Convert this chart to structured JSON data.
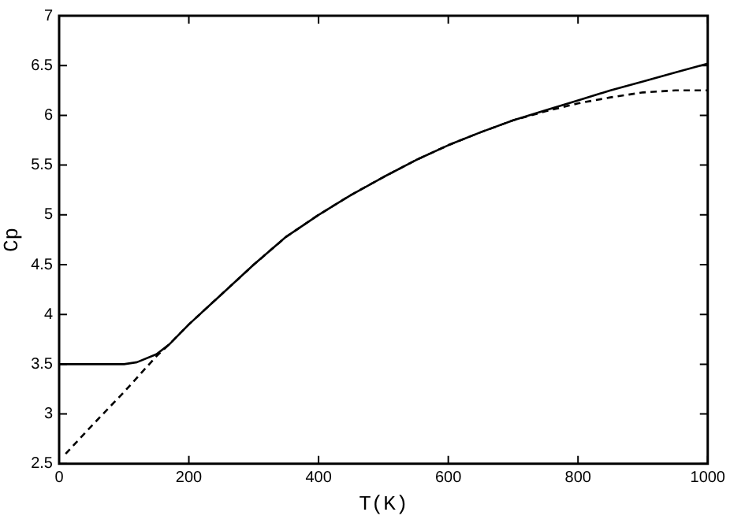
{
  "chart_data": {
    "type": "line",
    "xlabel": "T(K)",
    "ylabel": "Cp",
    "xlim": [
      0,
      1000
    ],
    "xticks": [
      0,
      200,
      400,
      600,
      800,
      1000
    ],
    "ylim": [
      2.5,
      7
    ],
    "yticks": [
      2.5,
      3,
      3.5,
      4,
      4.5,
      5,
      5.5,
      6,
      6.5,
      7
    ],
    "grid": false,
    "legend": false,
    "marker": "none",
    "series": [
      {
        "color": "#000000",
        "line_style": "solid",
        "x": [
          0,
          50,
          100,
          120,
          150,
          170,
          200,
          250,
          300,
          350,
          400,
          450,
          500,
          550,
          600,
          650,
          700,
          750,
          800,
          850,
          900,
          950,
          1000
        ],
        "values": [
          3.5,
          3.5,
          3.5,
          3.52,
          3.6,
          3.7,
          3.9,
          4.2,
          4.5,
          4.78,
          5.0,
          5.2,
          5.38,
          5.55,
          5.7,
          5.83,
          5.95,
          6.05,
          6.15,
          6.25,
          6.34,
          6.43,
          6.52
        ]
      },
      {
        "color": "#000000",
        "line_style": "dashed",
        "x": [
          10,
          50,
          100,
          150,
          170,
          200,
          250,
          300,
          350,
          400,
          450,
          500,
          550,
          600,
          650,
          700,
          750,
          800,
          850,
          900,
          950,
          1000
        ],
        "values": [
          2.6,
          2.88,
          3.22,
          3.58,
          3.7,
          3.9,
          4.2,
          4.5,
          4.78,
          5.0,
          5.2,
          5.38,
          5.55,
          5.7,
          5.83,
          5.95,
          6.04,
          6.12,
          6.18,
          6.23,
          6.25,
          6.25
        ]
      }
    ]
  }
}
